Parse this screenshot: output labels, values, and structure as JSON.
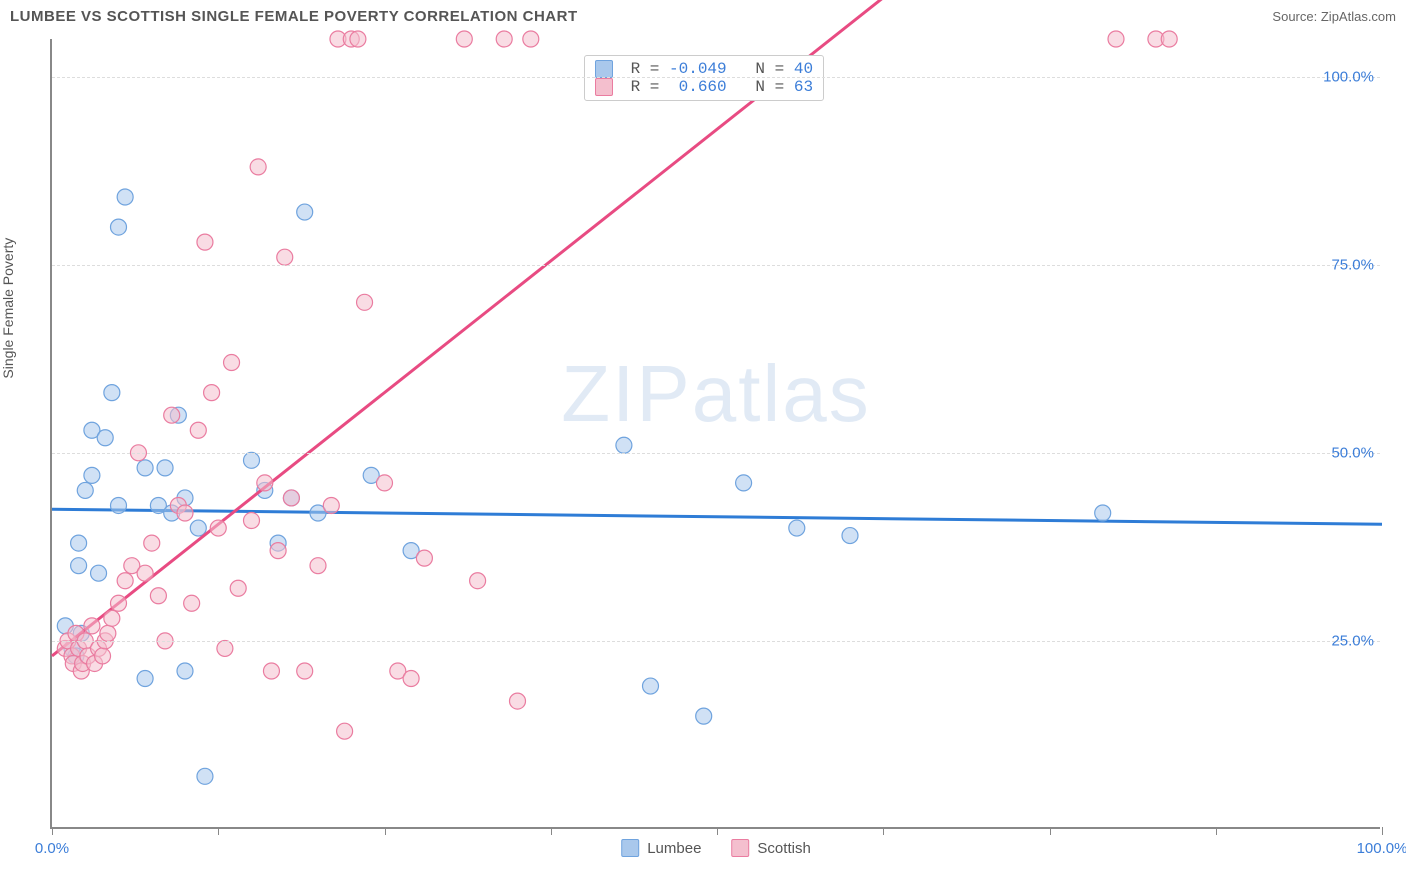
{
  "header": {
    "title": "LUMBEE VS SCOTTISH SINGLE FEMALE POVERTY CORRELATION CHART",
    "source_label": "Source:",
    "source_name": "ZipAtlas.com"
  },
  "chart": {
    "type": "scatter",
    "ylabel": "Single Female Poverty",
    "xlim": [
      0,
      100
    ],
    "ylim": [
      0,
      105
    ],
    "xtick_positions": [
      0,
      12.5,
      25,
      37.5,
      50,
      62.5,
      75,
      87.5,
      100
    ],
    "xtick_labels": {
      "0": "0.0%",
      "100": "100.0%"
    },
    "ytick_positions": [
      25,
      50,
      75,
      100
    ],
    "ytick_labels": [
      "25.0%",
      "50.0%",
      "75.0%",
      "100.0%"
    ],
    "grid_color": "#dddddd",
    "axis_color": "#888888",
    "background_color": "#ffffff",
    "tick_label_color": "#3b7dd8",
    "marker_radius": 8,
    "marker_opacity": 0.55,
    "marker_stroke_width": 1.2,
    "watermark_text": "ZIPatlas",
    "series": [
      {
        "name": "Lumbee",
        "color_fill": "#a9c8ec",
        "color_stroke": "#6fa3de",
        "regression": {
          "slope": -0.02,
          "intercept": 42.5,
          "color": "#2e7cd6",
          "width": 3
        },
        "stats": {
          "R": "-0.049",
          "N": "40"
        },
        "points": [
          [
            1,
            27
          ],
          [
            1.5,
            24
          ],
          [
            1.8,
            23
          ],
          [
            2,
            35
          ],
          [
            2,
            38
          ],
          [
            2.2,
            26
          ],
          [
            2.5,
            45
          ],
          [
            3,
            53
          ],
          [
            3,
            47
          ],
          [
            3.5,
            34
          ],
          [
            4,
            52
          ],
          [
            4.5,
            58
          ],
          [
            5,
            43
          ],
          [
            5,
            80
          ],
          [
            5.5,
            84
          ],
          [
            7,
            48
          ],
          [
            7,
            20
          ],
          [
            8,
            43
          ],
          [
            8.5,
            48
          ],
          [
            9,
            42
          ],
          [
            9.5,
            55
          ],
          [
            10,
            44
          ],
          [
            10,
            21
          ],
          [
            11,
            40
          ],
          [
            11.5,
            7
          ],
          [
            15,
            49
          ],
          [
            16,
            45
          ],
          [
            17,
            38
          ],
          [
            18,
            44
          ],
          [
            19,
            82
          ],
          [
            20,
            42
          ],
          [
            24,
            47
          ],
          [
            27,
            37
          ],
          [
            43,
            51
          ],
          [
            45,
            19
          ],
          [
            49,
            15
          ],
          [
            52,
            46
          ],
          [
            56,
            40
          ],
          [
            60,
            39
          ],
          [
            79,
            42
          ]
        ]
      },
      {
        "name": "Scottish",
        "color_fill": "#f4bfce",
        "color_stroke": "#ea7ca0",
        "regression": {
          "slope": 1.4,
          "intercept": 23.0,
          "color": "#e84b82",
          "width": 3
        },
        "stats": {
          "R": "0.660",
          "N": "63"
        },
        "points": [
          [
            1,
            24
          ],
          [
            1.2,
            25
          ],
          [
            1.5,
            23
          ],
          [
            1.6,
            22
          ],
          [
            1.8,
            26
          ],
          [
            2,
            24
          ],
          [
            2.2,
            21
          ],
          [
            2.3,
            22
          ],
          [
            2.5,
            25
          ],
          [
            2.7,
            23
          ],
          [
            3,
            27
          ],
          [
            3.2,
            22
          ],
          [
            3.5,
            24
          ],
          [
            3.8,
            23
          ],
          [
            4,
            25
          ],
          [
            4.2,
            26
          ],
          [
            4.5,
            28
          ],
          [
            5,
            30
          ],
          [
            5.5,
            33
          ],
          [
            6,
            35
          ],
          [
            6.5,
            50
          ],
          [
            7,
            34
          ],
          [
            7.5,
            38
          ],
          [
            8,
            31
          ],
          [
            8.5,
            25
          ],
          [
            9,
            55
          ],
          [
            9.5,
            43
          ],
          [
            10,
            42
          ],
          [
            10.5,
            30
          ],
          [
            11,
            53
          ],
          [
            11.5,
            78
          ],
          [
            12,
            58
          ],
          [
            12.5,
            40
          ],
          [
            13,
            24
          ],
          [
            13.5,
            62
          ],
          [
            14,
            32
          ],
          [
            15,
            41
          ],
          [
            15.5,
            88
          ],
          [
            16,
            46
          ],
          [
            16.5,
            21
          ],
          [
            17,
            37
          ],
          [
            17.5,
            76
          ],
          [
            18,
            44
          ],
          [
            19,
            21
          ],
          [
            20,
            35
          ],
          [
            21,
            43
          ],
          [
            21.5,
            105
          ],
          [
            22,
            13
          ],
          [
            22.5,
            105
          ],
          [
            23,
            105
          ],
          [
            23.5,
            70
          ],
          [
            25,
            46
          ],
          [
            26,
            21
          ],
          [
            27,
            20
          ],
          [
            28,
            36
          ],
          [
            31,
            105
          ],
          [
            32,
            33
          ],
          [
            34,
            105
          ],
          [
            35,
            17
          ],
          [
            36,
            105
          ],
          [
            80,
            105
          ],
          [
            83,
            105
          ],
          [
            84,
            105
          ]
        ]
      }
    ],
    "legend_bottom": [
      {
        "label": "Lumbee",
        "fill": "#a9c8ec",
        "stroke": "#6fa3de"
      },
      {
        "label": "Scottish",
        "fill": "#f4bfce",
        "stroke": "#ea7ca0"
      }
    ],
    "stats_box": {
      "left_pct": 40,
      "top_pct": 2
    }
  }
}
